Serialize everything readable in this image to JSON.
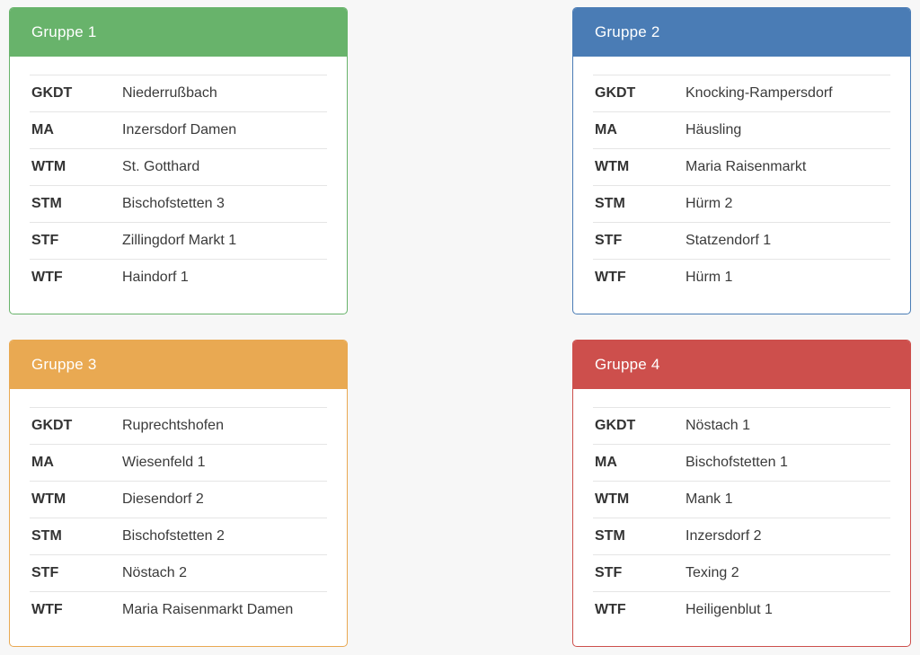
{
  "page": {
    "background_color": "#f7f7f7",
    "divider_color": "#e5e5e5",
    "text_color": "#3a3a3a"
  },
  "groups": [
    {
      "title": "Gruppe 1",
      "accent": "#68b36b",
      "rows": [
        {
          "label": "GKDT",
          "value": "Niederrußbach"
        },
        {
          "label": "MA",
          "value": "Inzersdorf Damen"
        },
        {
          "label": "WTM",
          "value": "St. Gotthard"
        },
        {
          "label": "STM",
          "value": "Bischofstetten 3"
        },
        {
          "label": "STF",
          "value": "Zillingdorf Markt 1"
        },
        {
          "label": "WTF",
          "value": "Haindorf 1"
        }
      ]
    },
    {
      "title": "Gruppe 2",
      "accent": "#4a7cb5",
      "rows": [
        {
          "label": "GKDT",
          "value": "Knocking-Rampersdorf"
        },
        {
          "label": "MA",
          "value": "Häusling"
        },
        {
          "label": "WTM",
          "value": "Maria Raisenmarkt"
        },
        {
          "label": "STM",
          "value": "Hürm 2"
        },
        {
          "label": "STF",
          "value": "Statzendorf 1"
        },
        {
          "label": "WTF",
          "value": "Hürm 1"
        }
      ]
    },
    {
      "title": "Gruppe 3",
      "accent": "#e9a952",
      "rows": [
        {
          "label": "GKDT",
          "value": "Ruprechtshofen"
        },
        {
          "label": "MA",
          "value": "Wiesenfeld 1"
        },
        {
          "label": "WTM",
          "value": "Diesendorf 2"
        },
        {
          "label": "STM",
          "value": "Bischofstetten 2"
        },
        {
          "label": "STF",
          "value": "Nöstach 2"
        },
        {
          "label": "WTF",
          "value": "Maria Raisenmarkt Damen"
        }
      ]
    },
    {
      "title": "Gruppe 4",
      "accent": "#cd4f4c",
      "rows": [
        {
          "label": "GKDT",
          "value": "Nöstach 1"
        },
        {
          "label": "MA",
          "value": "Bischofstetten 1"
        },
        {
          "label": "WTM",
          "value": "Mank 1"
        },
        {
          "label": "STM",
          "value": "Inzersdorf 2"
        },
        {
          "label": "STF",
          "value": "Texing 2"
        },
        {
          "label": "WTF",
          "value": "Heiligenblut 1"
        }
      ]
    }
  ]
}
